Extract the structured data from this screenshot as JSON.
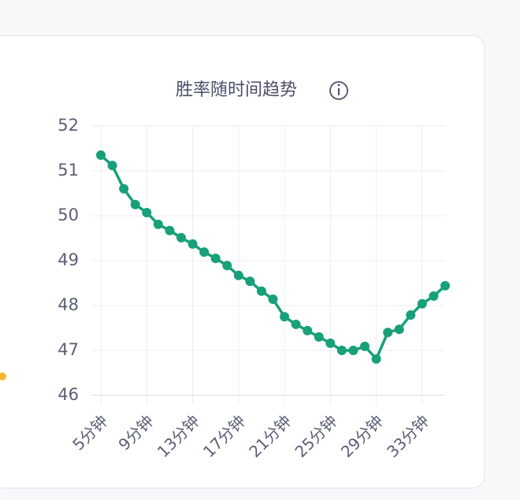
{
  "chart_data": {
    "type": "line",
    "title": "胜率随时间趋势",
    "categories": [
      "5分钟",
      null,
      null,
      null,
      "9分钟",
      null,
      null,
      null,
      "13分钟",
      null,
      null,
      null,
      "17分钟",
      null,
      null,
      null,
      "21分钟",
      null,
      null,
      null,
      "25分钟",
      null,
      null,
      null,
      "29分钟",
      null,
      null,
      null,
      "33分钟",
      null,
      null
    ],
    "series": [
      {
        "name": "胜率",
        "color": "#17a07a",
        "values": [
          51.35,
          51.12,
          50.6,
          50.25,
          50.07,
          49.81,
          49.67,
          49.51,
          49.37,
          49.19,
          49.05,
          48.89,
          48.67,
          48.54,
          48.32,
          48.14,
          47.75,
          47.58,
          47.44,
          47.3,
          47.16,
          47.0,
          47.0,
          47.09,
          46.81,
          47.4,
          47.47,
          47.79,
          48.04,
          48.21,
          48.44
        ]
      }
    ],
    "ylim": [
      46,
      52
    ],
    "yticks": [
      46,
      47,
      48,
      49,
      50,
      51,
      52
    ],
    "grid": true
  }
}
